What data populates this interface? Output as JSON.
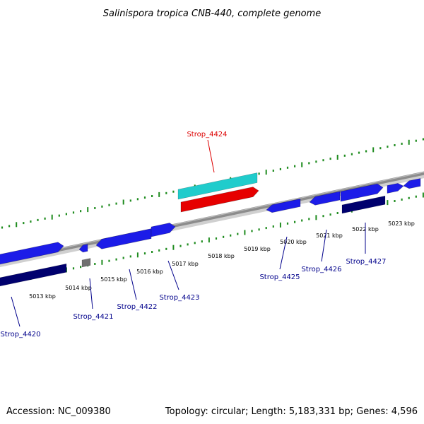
{
  "title": "Salinispora tropica CNB-440, complete genome",
  "footer": {
    "accession": "Accession: NC_009380",
    "summary": "Topology: circular; Length: 5,183,331 bp; Genes: 4,596"
  },
  "colors": {
    "backbone": "#8c8c8c",
    "tick": "#1f8c1f",
    "gene_forward": "#1c1ce8",
    "gene_reverse": "#00006e",
    "highlight_gene": "#e60000",
    "highlight_feature": "#20cccc",
    "other_feature": "#707070",
    "label_default": "#00008b",
    "label_highlight": "#dd0000"
  },
  "ruler": {
    "unit": "kbp",
    "labels": [
      "5013 kbp",
      "5014 kbp",
      "5015 kbp",
      "5016 kbp",
      "5017 kbp",
      "5018 kbp",
      "5019 kbp",
      "5020 kbp",
      "5021 kbp",
      "5022 kbp",
      "5023 kbp"
    ]
  },
  "gene_labels": [
    {
      "name": "Strop_4420",
      "highlight": false
    },
    {
      "name": "Strop_4421",
      "highlight": false
    },
    {
      "name": "Strop_4422",
      "highlight": false
    },
    {
      "name": "Strop_4423",
      "highlight": false
    },
    {
      "name": "Strop_4424",
      "highlight": true
    },
    {
      "name": "Strop_4425",
      "highlight": false
    },
    {
      "name": "Strop_4426",
      "highlight": false
    },
    {
      "name": "Strop_4427",
      "highlight": false
    }
  ]
}
